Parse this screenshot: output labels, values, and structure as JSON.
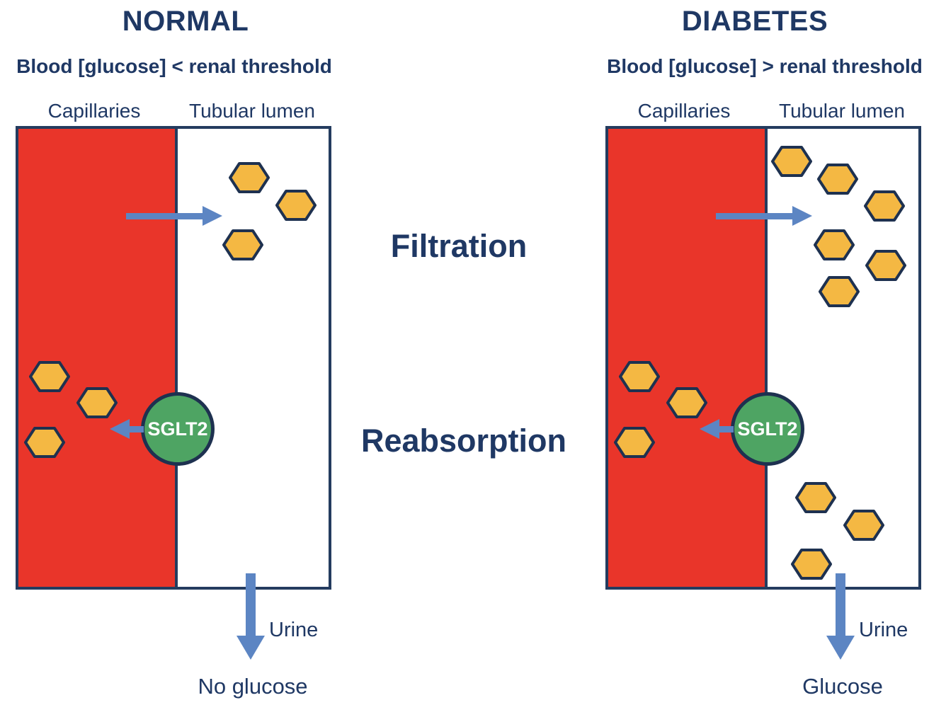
{
  "colors": {
    "text_navy": "#1F3864",
    "outline_navy": "#243C5F",
    "shape_stroke_navy": "#1E3150",
    "capillary_red": "#E9352A",
    "glucose_fill": "#F4B843",
    "arrow_blue": "#5C85C3",
    "sglt2_green": "#4EA463"
  },
  "center_labels": {
    "filtration": "Filtration",
    "reabsorption": "Reabsorption"
  },
  "panels": [
    {
      "id": "normal",
      "title": "NORMAL",
      "subtitle": "Blood [glucose] < renal threshold",
      "capillaries_label": "Capillaries",
      "tubular_lumen_label": "Tubular lumen",
      "transporter_label": "SGLT2",
      "urine_label": "Urine",
      "urine_result_label": "No glucose",
      "glucose_hexagons": {
        "capillaries": [
          [
            70,
            532
          ],
          [
            137,
            569
          ],
          [
            63,
            625
          ]
        ],
        "tubular_lumen_filtered": [
          [
            352,
            251
          ],
          [
            418,
            290
          ],
          [
            343,
            346
          ]
        ],
        "tubular_lumen_excreted": []
      }
    },
    {
      "id": "diabetes",
      "title": "DIABETES",
      "subtitle": "Blood [glucose] > renal threshold",
      "capillaries_label": "Capillaries",
      "tubular_lumen_label": "Tubular lumen",
      "transporter_label": "SGLT2",
      "urine_label": "Urine",
      "urine_result_label": "Glucose",
      "glucose_hexagons": {
        "capillaries": [
          [
            903,
            532
          ],
          [
            970,
            569
          ],
          [
            896,
            625
          ]
        ],
        "tubular_lumen_filtered": [
          [
            1118,
            228
          ],
          [
            1183,
            253
          ],
          [
            1249,
            291
          ],
          [
            1178,
            346
          ],
          [
            1251,
            375
          ],
          [
            1185,
            412
          ]
        ],
        "tubular_lumen_excreted": [
          [
            1152,
            703
          ],
          [
            1220,
            742
          ],
          [
            1146,
            797
          ]
        ]
      }
    }
  ]
}
